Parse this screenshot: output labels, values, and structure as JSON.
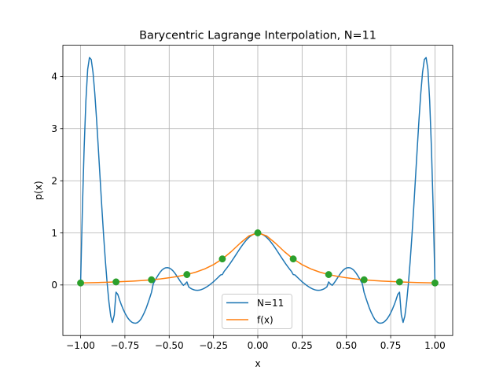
{
  "chart_data": {
    "type": "line",
    "title": "Barycentric Lagrange Interpolation, N=11",
    "xlabel": "x",
    "ylabel": "p(x)",
    "xlim": [
      -1.1,
      1.1
    ],
    "ylim": [
      -0.97,
      4.6
    ],
    "xticks": [
      -1.0,
      -0.75,
      -0.5,
      -0.25,
      0.0,
      0.25,
      0.5,
      0.75,
      1.0
    ],
    "xtick_labels": [
      "−1.00",
      "−0.75",
      "−0.50",
      "−0.25",
      "0.00",
      "0.25",
      "0.50",
      "0.75",
      "1.00"
    ],
    "yticks": [
      0,
      1,
      2,
      3,
      4
    ],
    "ytick_labels": [
      "0",
      "1",
      "2",
      "3",
      "4"
    ],
    "grid": true,
    "legend_position": "lower center",
    "series": [
      {
        "name": "N=11",
        "color": "#1f77b4",
        "kind": "line",
        "x": [
          -1.0,
          -0.99,
          -0.98,
          -0.97,
          -0.96,
          -0.95,
          -0.94,
          -0.93,
          -0.92,
          -0.91,
          -0.9,
          -0.89,
          -0.88,
          -0.87,
          -0.86,
          -0.85,
          -0.84,
          -0.83,
          -0.82,
          -0.81,
          -0.8,
          -0.79,
          -0.78,
          -0.77,
          -0.76,
          -0.75,
          -0.74,
          -0.73,
          -0.72,
          -0.71,
          -0.7,
          -0.69,
          -0.68,
          -0.67,
          -0.66,
          -0.65,
          -0.64,
          -0.63,
          -0.62,
          -0.61,
          -0.6,
          -0.59,
          -0.58,
          -0.57,
          -0.56,
          -0.55,
          -0.54,
          -0.53,
          -0.52,
          -0.51,
          -0.5,
          -0.49,
          -0.48,
          -0.47,
          -0.46,
          -0.45,
          -0.44,
          -0.43,
          -0.42,
          -0.41,
          -0.4,
          -0.39,
          -0.38,
          -0.37,
          -0.36,
          -0.35,
          -0.34,
          -0.33,
          -0.32,
          -0.31,
          -0.3,
          -0.29,
          -0.28,
          -0.27,
          -0.26,
          -0.25,
          -0.24,
          -0.23,
          -0.22,
          -0.21,
          -0.2,
          -0.19,
          -0.18,
          -0.17,
          -0.16,
          -0.15,
          -0.14,
          -0.13,
          -0.12,
          -0.11,
          -0.1,
          -0.09,
          -0.08,
          -0.07,
          -0.06,
          -0.05,
          -0.04,
          -0.03,
          -0.02,
          -0.01,
          0.0,
          0.01,
          0.02,
          0.03,
          0.04,
          0.05,
          0.06,
          0.07,
          0.08,
          0.09,
          0.1,
          0.11,
          0.12,
          0.13,
          0.14,
          0.15,
          0.16,
          0.17,
          0.18,
          0.19,
          0.2,
          0.21,
          0.22,
          0.23,
          0.24,
          0.25,
          0.26,
          0.27,
          0.28,
          0.29,
          0.3,
          0.31,
          0.32,
          0.33,
          0.34,
          0.35,
          0.36,
          0.37,
          0.38,
          0.39,
          0.4,
          0.41,
          0.42,
          0.43,
          0.44,
          0.45,
          0.46,
          0.47,
          0.48,
          0.49,
          0.5,
          0.51,
          0.52,
          0.53,
          0.54,
          0.55,
          0.56,
          0.57,
          0.58,
          0.59,
          0.6,
          0.61,
          0.62,
          0.63,
          0.64,
          0.65,
          0.66,
          0.67,
          0.68,
          0.69,
          0.7,
          0.71,
          0.72,
          0.73,
          0.74,
          0.75,
          0.76,
          0.77,
          0.78,
          0.79,
          0.8,
          0.81,
          0.82,
          0.83,
          0.84,
          0.85,
          0.86,
          0.87,
          0.88,
          0.89,
          0.9,
          0.91,
          0.92,
          0.93,
          0.94,
          0.95,
          0.96,
          0.97,
          0.98,
          0.99,
          1.0
        ],
        "y": [
          0.0385,
          1.4488,
          2.6217,
          3.5392,
          4.1372,
          4.3636,
          4.3257,
          4.0806,
          3.6835,
          3.1848,
          2.6284,
          2.0512,
          1.4825,
          0.9453,
          0.4566,
          0.028,
          -0.3285,
          -0.5961,
          -0.7184,
          -0.5744,
          -0.138,
          -0.1813,
          -0.2866,
          -0.3805,
          -0.4639,
          -0.5367,
          -0.5982,
          -0.6492,
          -0.6882,
          -0.7154,
          -0.7298,
          -0.7341,
          -0.7243,
          -0.6975,
          -0.6583,
          -0.5971,
          -0.5267,
          -0.4468,
          -0.3499,
          -0.2496,
          -0.1426,
          0.023,
          0.0865,
          0.1467,
          0.2018,
          0.2508,
          0.2888,
          0.3142,
          0.3297,
          0.333,
          0.3259,
          0.3061,
          0.2763,
          0.2357,
          0.1882,
          0.1357,
          0.0832,
          0.0348,
          -0.0075,
          0.0189,
          0.0588,
          -0.037,
          -0.0619,
          -0.0802,
          -0.0931,
          -0.1012,
          -0.1031,
          -0.0993,
          -0.0902,
          -0.0769,
          -0.06,
          -0.0398,
          -0.0172,
          0.0079,
          0.0343,
          0.0628,
          0.0935,
          0.1256,
          0.1588,
          0.1923,
          0.2,
          0.2599,
          0.3024,
          0.3468,
          0.3936,
          0.4427,
          0.4937,
          0.5452,
          0.5974,
          0.6494,
          0.7007,
          0.7505,
          0.7963,
          0.8395,
          0.8785,
          0.9114,
          0.9401,
          0.9622,
          0.9803,
          0.9932,
          1.0,
          0.9932,
          0.9803,
          0.9622,
          0.9401,
          0.9114,
          0.8785,
          0.8395,
          0.7963,
          0.7505,
          0.7007,
          0.6494,
          0.5974,
          0.5452,
          0.4937,
          0.4427,
          0.3936,
          0.3468,
          0.3024,
          0.2599,
          0.2,
          0.1923,
          0.1588,
          0.1256,
          0.0935,
          0.0628,
          0.0343,
          0.0079,
          -0.0172,
          -0.0398,
          -0.06,
          -0.0769,
          -0.0902,
          -0.0993,
          -0.1031,
          -0.1012,
          -0.0931,
          -0.0802,
          -0.0619,
          -0.037,
          0.0588,
          0.0189,
          -0.0075,
          0.0348,
          0.0832,
          0.1357,
          0.1882,
          0.2357,
          0.2763,
          0.3061,
          0.3259,
          0.333,
          0.3297,
          0.3142,
          0.2888,
          0.2508,
          0.2018,
          0.1467,
          0.0865,
          0.023,
          -0.1426,
          -0.2496,
          -0.3499,
          -0.4468,
          -0.5267,
          -0.5971,
          -0.6583,
          -0.6975,
          -0.7243,
          -0.7341,
          -0.7298,
          -0.7154,
          -0.6882,
          -0.6492,
          -0.5982,
          -0.5367,
          -0.4639,
          -0.3805,
          -0.2866,
          -0.1813,
          -0.138,
          -0.5744,
          -0.7184,
          -0.5961,
          -0.3285,
          0.028,
          0.4566,
          0.9453,
          1.4825,
          2.0512,
          2.6284,
          3.1848,
          3.6835,
          4.0806,
          4.3257,
          4.3636,
          4.1372,
          3.5392,
          2.6217,
          1.4488,
          0.0385
        ]
      },
      {
        "name": "f(x)",
        "color": "#ff7f0e",
        "kind": "line",
        "x": [
          -1.0,
          -0.95,
          -0.9,
          -0.85,
          -0.8,
          -0.75,
          -0.7,
          -0.65,
          -0.6,
          -0.55,
          -0.5,
          -0.45,
          -0.4,
          -0.35,
          -0.3,
          -0.25,
          -0.2,
          -0.15,
          -0.1,
          -0.05,
          0.0,
          0.05,
          0.1,
          0.15,
          0.2,
          0.25,
          0.3,
          0.35,
          0.4,
          0.45,
          0.5,
          0.55,
          0.6,
          0.65,
          0.7,
          0.75,
          0.8,
          0.85,
          0.9,
          0.95,
          1.0
        ],
        "y": [
          0.0385,
          0.0424,
          0.0471,
          0.0525,
          0.0588,
          0.0664,
          0.0755,
          0.0865,
          0.1,
          0.1168,
          0.1379,
          0.165,
          0.2,
          0.2462,
          0.3077,
          0.3902,
          0.5,
          0.64,
          0.8,
          0.9412,
          1.0,
          0.9412,
          0.8,
          0.64,
          0.5,
          0.3902,
          0.3077,
          0.2462,
          0.2,
          0.165,
          0.1379,
          0.1168,
          0.1,
          0.0865,
          0.0755,
          0.0664,
          0.0588,
          0.0525,
          0.0471,
          0.0424,
          0.0385
        ]
      },
      {
        "color": "#2ca02c",
        "kind": "markers",
        "x": [
          -1.0,
          -0.8,
          -0.6,
          -0.4,
          -0.2,
          0.0,
          0.2,
          0.4,
          0.6,
          0.8,
          1.0
        ],
        "y": [
          0.0385,
          0.0588,
          0.1,
          0.2,
          0.5,
          1.0,
          0.5,
          0.2,
          0.1,
          0.0588,
          0.0385
        ]
      }
    ]
  }
}
